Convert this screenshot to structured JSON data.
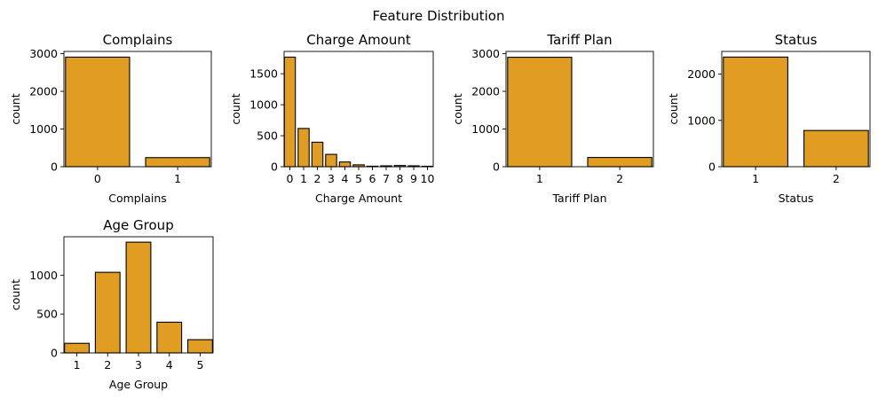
{
  "figure": {
    "title": "Feature Distribution",
    "bar_color": "#E09D21",
    "edge_color": "#000000"
  },
  "chart_data": [
    {
      "type": "bar",
      "title": "Complains",
      "xlabel": "Complains",
      "ylabel": "count",
      "categories": [
        "0",
        "1"
      ],
      "values": [
        2909,
        241
      ],
      "ylim": [
        0,
        3060
      ],
      "yticks": [
        0,
        1000,
        2000,
        3000
      ]
    },
    {
      "type": "bar",
      "title": "Charge  Amount",
      "xlabel": "Charge  Amount",
      "ylabel": "count",
      "categories": [
        "0",
        "1",
        "2",
        "3",
        "4",
        "5",
        "6",
        "7",
        "8",
        "9",
        "10"
      ],
      "values": [
        1768,
        617,
        395,
        199,
        76,
        30,
        8,
        14,
        19,
        14,
        7
      ],
      "ylim": [
        0,
        1860
      ],
      "yticks": [
        0,
        500,
        1000,
        1500
      ]
    },
    {
      "type": "bar",
      "title": "Tariff Plan",
      "xlabel": "Tariff Plan",
      "ylabel": "count",
      "categories": [
        "1",
        "2"
      ],
      "values": [
        2905,
        245
      ],
      "ylim": [
        0,
        3060
      ],
      "yticks": [
        0,
        1000,
        2000,
        3000
      ]
    },
    {
      "type": "bar",
      "title": "Status",
      "xlabel": "Status",
      "ylabel": "count",
      "categories": [
        "1",
        "2"
      ],
      "values": [
        2368,
        782
      ],
      "ylim": [
        0,
        2490
      ],
      "yticks": [
        0,
        1000,
        2000
      ]
    },
    {
      "type": "bar",
      "title": "Age Group",
      "xlabel": "Age Group",
      "ylabel": "count",
      "categories": [
        "1",
        "2",
        "3",
        "4",
        "5"
      ],
      "values": [
        123,
        1037,
        1425,
        395,
        170
      ],
      "ylim": [
        0,
        1495
      ],
      "yticks": [
        0,
        500,
        1000
      ]
    }
  ]
}
